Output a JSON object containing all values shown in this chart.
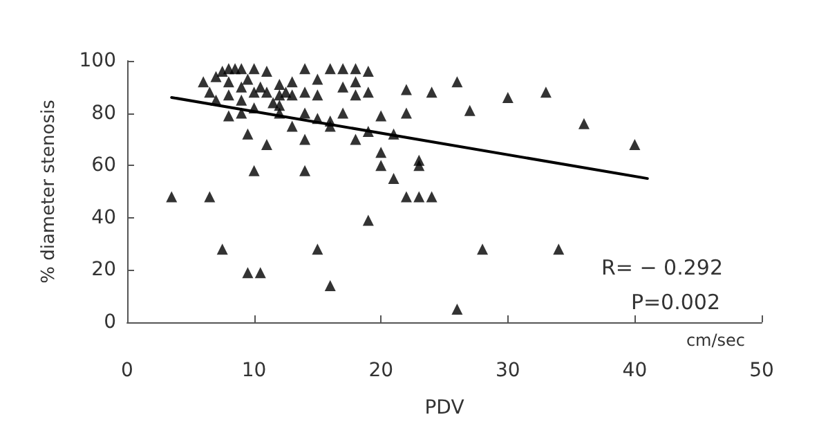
{
  "chart_data": {
    "type": "scatter",
    "xlabel": "PDV",
    "ylabel": "% diameter stenosis",
    "grid": false,
    "xlim": [
      0,
      50
    ],
    "xticks": [
      0,
      10,
      20,
      30,
      40,
      50
    ],
    "ylim": [
      0,
      100
    ],
    "yticks": [
      0,
      20,
      40,
      60,
      80,
      100
    ],
    "annotations": [
      "cm/sec",
      "R= − 0.292",
      "P=0.002"
    ],
    "series": [
      {
        "marker": "triangle",
        "color": "#000000",
        "x": [
          3.5,
          6.5,
          7.5,
          9.5,
          10.5,
          10,
          14,
          15,
          16,
          19,
          22,
          23,
          24,
          23,
          23,
          20,
          20,
          21,
          26,
          28,
          34,
          40,
          36,
          33,
          30,
          27,
          26,
          24,
          22,
          22,
          20,
          21,
          6,
          6.5,
          7,
          7.5,
          8,
          8,
          8.5,
          9,
          9,
          8,
          9.5,
          10,
          10,
          10.5,
          11,
          11,
          12,
          11.5,
          12,
          12.5,
          13,
          13,
          14,
          14,
          15,
          15,
          16,
          17,
          18,
          19,
          17,
          18,
          19,
          18,
          15,
          16,
          14,
          12,
          9,
          8,
          9,
          9.5,
          11,
          14,
          13,
          16,
          17,
          18,
          19,
          10,
          7,
          12
        ],
        "values": [
          48,
          48,
          28,
          19,
          19,
          58,
          58,
          28,
          14,
          39,
          48,
          48,
          48,
          60,
          62,
          60,
          65,
          55,
          5,
          28,
          28,
          68,
          76,
          88,
          86,
          81,
          92,
          88,
          89,
          80,
          79,
          72,
          92,
          88,
          94,
          96,
          97,
          92,
          97,
          97,
          90,
          87,
          93,
          97,
          88,
          90,
          96,
          88,
          87,
          84,
          91,
          88,
          87,
          92,
          97,
          88,
          93,
          87,
          97,
          97,
          97,
          96,
          90,
          92,
          88,
          87,
          78,
          77,
          80,
          80,
          85,
          79,
          80,
          72,
          68,
          70,
          75,
          75,
          80,
          70,
          73,
          82,
          85,
          83
        ]
      },
      {
        "type": "line",
        "marker": "none",
        "color": "#000000",
        "x": [
          3.5,
          41
        ],
        "values": [
          86,
          55
        ]
      }
    ]
  }
}
